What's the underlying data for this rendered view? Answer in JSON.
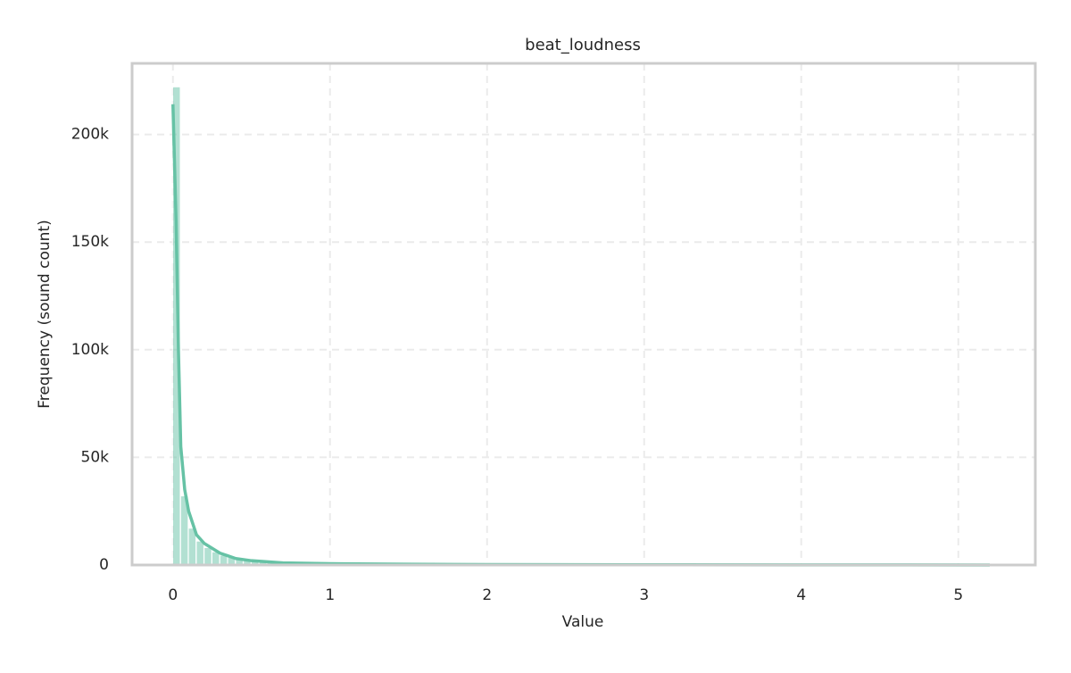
{
  "chart_data": {
    "type": "histogram",
    "title": "beat_loudness",
    "x_label": "Value",
    "y_label": "Frequency (sound count)",
    "color": "#66c2a5",
    "grid": true,
    "xlim": [
      -0.26,
      5.49
    ],
    "ylim": [
      0,
      233000
    ],
    "xticks": [
      0,
      1,
      2,
      3,
      4,
      5
    ],
    "yticks": [
      0,
      {
        "value": 50000,
        "label": "50k"
      },
      {
        "value": 100000,
        "label": "100k"
      },
      {
        "value": 150000,
        "label": "150k"
      },
      {
        "value": 200000,
        "label": "200k"
      }
    ],
    "bins": [
      0,
      0.05,
      0.1,
      0.15,
      0.2,
      0.25,
      0.3,
      0.35,
      0.4,
      0.45,
      0.5,
      0.55,
      0.6,
      0.65,
      0.7,
      0.75,
      0.8,
      0.85,
      0.9,
      0.95,
      1,
      1.05,
      1.1,
      1.15,
      1.2,
      1.25,
      1.3,
      1.35,
      1.4,
      1.45,
      1.5,
      1.55,
      1.6,
      1.65,
      1.7,
      1.75,
      1.8,
      1.85,
      1.9,
      1.95,
      2,
      2.05,
      2.1,
      2.15,
      2.2,
      2.25,
      2.3,
      2.35,
      2.4,
      2.45,
      2.5,
      2.55,
      2.6,
      2.65,
      2.7,
      2.75,
      2.8,
      2.85,
      2.9,
      2.95,
      3,
      3.05,
      3.1,
      3.15,
      3.2,
      3.25,
      3.3,
      3.35,
      3.4,
      3.45,
      3.5,
      3.55,
      3.6,
      3.65,
      3.7,
      3.75,
      3.8,
      3.85,
      3.9,
      3.95,
      4,
      4.05,
      4.1,
      4.15,
      4.2,
      4.25,
      4.3,
      4.35,
      4.4,
      4.45,
      4.5,
      4.55,
      4.6,
      4.65,
      4.7,
      4.75,
      4.8,
      4.85,
      4.9,
      4.95,
      5,
      5.05,
      5.1,
      5.15,
      5.2,
      5.25
    ],
    "counts": [
      222000,
      32000,
      17000,
      11000,
      8000,
      6000,
      4500,
      3500,
      2800,
      2200,
      1800,
      1500,
      1200,
      1000,
      900,
      800,
      700,
      620,
      560,
      500,
      460,
      420,
      390,
      360,
      330,
      310,
      290,
      270,
      250,
      230,
      215,
      200,
      190,
      180,
      170,
      160,
      150,
      140,
      130,
      125,
      120,
      115,
      110,
      105,
      100,
      95,
      90,
      85,
      80,
      78,
      75,
      72,
      70,
      68,
      65,
      62,
      60,
      58,
      55,
      52,
      50,
      48,
      46,
      44,
      42,
      40,
      38,
      36,
      34,
      32,
      30,
      29,
      28,
      27,
      26,
      25,
      24,
      23,
      22,
      21,
      20,
      19,
      18,
      17,
      16,
      15,
      14,
      13,
      12,
      11,
      10,
      10,
      9,
      9,
      8,
      8,
      7,
      7,
      6,
      6,
      5,
      5,
      4,
      4,
      3
    ],
    "kde": {
      "x": [
        0,
        0.02,
        0.035,
        0.05,
        0.075,
        0.1,
        0.15,
        0.2,
        0.3,
        0.4,
        0.5,
        0.7,
        1,
        1.5,
        2,
        3,
        4,
        5.2
      ],
      "y": [
        214000,
        160000,
        100000,
        55000,
        35000,
        25000,
        14000,
        10000,
        5500,
        3000,
        2000,
        1000,
        600,
        350,
        200,
        100,
        50,
        20
      ]
    }
  }
}
